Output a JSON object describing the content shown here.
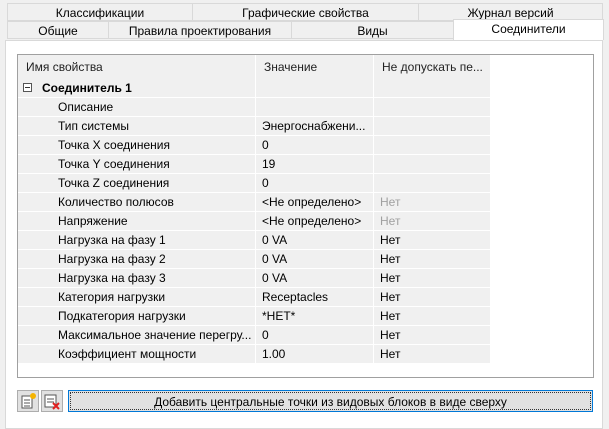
{
  "tabs_row1": [
    {
      "label": "Классификации"
    },
    {
      "label": "Графические свойства"
    },
    {
      "label": "Журнал версий"
    }
  ],
  "tabs_row2": [
    {
      "label": "Общие"
    },
    {
      "label": "Правила проектирования"
    },
    {
      "label": "Виды"
    },
    {
      "label": "Соединители",
      "selected": true
    }
  ],
  "grid": {
    "headers": [
      "Имя свойства",
      "Значение",
      "Не допускать пе..."
    ],
    "group": "Соединитель 1",
    "rows": [
      {
        "name": "Описание",
        "value": "",
        "lock": ""
      },
      {
        "name": "Тип системы",
        "value": "Энергоснабжени...",
        "lock": ""
      },
      {
        "name": "Точка X соединения",
        "value": "0",
        "lock": ""
      },
      {
        "name": "Точка Y соединения",
        "value": "19",
        "lock": ""
      },
      {
        "name": "Точка Z соединения",
        "value": "0",
        "lock": ""
      },
      {
        "name": "Количество полюсов",
        "value": "<Не определено>",
        "lock": "Нет",
        "lock_disabled": true
      },
      {
        "name": "Напряжение",
        "value": "<Не определено>",
        "lock": "Нет",
        "lock_disabled": true
      },
      {
        "name": "Нагрузка на фазу 1",
        "value": "0 VA",
        "lock": "Нет"
      },
      {
        "name": "Нагрузка на фазу 2",
        "value": "0 VA",
        "lock": "Нет"
      },
      {
        "name": "Нагрузка на фазу 3",
        "value": "0 VA",
        "lock": "Нет"
      },
      {
        "name": "Категория нагрузки",
        "value": "Receptacles",
        "lock": "Нет"
      },
      {
        "name": "Подкатегория нагрузки",
        "value": "*НЕТ*",
        "lock": "Нет"
      },
      {
        "name": "Максимальное значение перегру...",
        "value": "0",
        "lock": "Нет"
      },
      {
        "name": "Коэффициент мощности",
        "value": "1.00",
        "lock": "Нет"
      }
    ]
  },
  "buttons": {
    "add_icon": "add-connector-icon",
    "delete_icon": "delete-connector-icon",
    "main": "Добавить центральные точки из видовых блоков в виде сверху"
  }
}
